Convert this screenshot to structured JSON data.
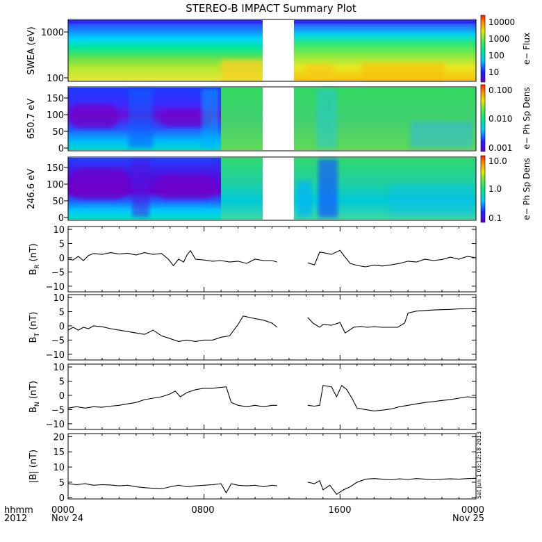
{
  "title": "STEREO-B IMPACT Summary Plot",
  "timestamp_vertical": "Sat Jun 1 03:12:18 2013",
  "xaxis": {
    "corner_labels": [
      "hhmm",
      "2012"
    ],
    "ticks": [
      "0000",
      "0800",
      "1600",
      "0000"
    ],
    "dates": [
      "Nov 24",
      "Nov 25"
    ]
  },
  "chart_data": [
    {
      "type": "heatmap",
      "ylabel": "SWEA (eV)",
      "y_scale": "log",
      "yticks": [
        "1000",
        "100"
      ],
      "colorbar": {
        "label": "e−  Flux",
        "scale": "log",
        "ticks": [
          "10000",
          "1000",
          "100",
          "10"
        ]
      },
      "data_gap_hours": [
        12.5,
        14.3
      ]
    },
    {
      "type": "heatmap",
      "ylabel": "650.7 eV",
      "yticks": [
        "150",
        "100",
        "50",
        "0"
      ],
      "ylim": [
        0,
        180
      ],
      "colorbar": {
        "label": "e−  Ph Sp Dens",
        "scale": "log",
        "ticks": [
          "0.100",
          "0.010",
          "0.001"
        ]
      },
      "data_gap_hours": [
        12.5,
        14.3
      ]
    },
    {
      "type": "heatmap",
      "ylabel": "246.6 eV",
      "yticks": [
        "150",
        "100",
        "50",
        "0"
      ],
      "ylim": [
        0,
        180
      ],
      "colorbar": {
        "label": "e−  Ph Sp Dens",
        "scale": "log",
        "ticks": [
          "10.0",
          "1.0",
          "0.1"
        ]
      },
      "data_gap_hours": [
        12.5,
        14.3
      ]
    },
    {
      "type": "line",
      "ylabel": "B",
      "ylabel_sub": "R",
      "ylabel_unit": " (nT)",
      "ylim": [
        -12,
        11
      ],
      "yticks": [
        "10",
        "5",
        "0",
        "−5",
        "−10"
      ],
      "x": [
        0,
        0.3,
        0.6,
        0.9,
        1.2,
        1.5,
        2,
        2.5,
        3,
        3.5,
        4,
        4.5,
        5,
        5.5,
        5.9,
        6.2,
        6.5,
        6.8,
        7,
        7.2,
        7.5,
        8,
        8.5,
        9,
        9.5,
        10,
        10.5,
        11,
        11.5,
        12,
        12.3,
        14.1,
        14.5,
        14.8,
        15,
        15.5,
        16,
        16.3,
        16.6,
        17,
        17.5,
        18,
        18.5,
        19,
        19.5,
        20,
        20.5,
        21,
        21.5,
        22,
        22.5,
        23,
        23.5,
        24
      ],
      "y": [
        -0.5,
        -0.8,
        0.5,
        -1,
        0.8,
        1.5,
        1.2,
        1.8,
        1.3,
        1.6,
        1,
        1.8,
        1.2,
        1.5,
        -0.5,
        -2.8,
        -0.5,
        -1.5,
        1,
        2.5,
        -0.5,
        -0.8,
        -1.2,
        -1,
        -1.5,
        -1.2,
        -2,
        -0.5,
        -1,
        -1,
        -1.5,
        -1.8,
        -2.5,
        2,
        1.8,
        1.2,
        2.6,
        0.2,
        -2,
        -2.7,
        -3.2,
        -2.6,
        -2.9,
        -2.5,
        -2,
        -1.2,
        -1.5,
        -0.5,
        -1,
        -0.6,
        0.2,
        -0.5,
        0.5,
        0
      ]
    },
    {
      "type": "line",
      "ylabel": "B",
      "ylabel_sub": "T",
      "ylabel_unit": " (nT)",
      "ylim": [
        -12,
        11
      ],
      "yticks": [
        "10",
        "5",
        "0",
        "−5",
        "−10"
      ],
      "x": [
        0,
        0.3,
        0.6,
        0.9,
        1.2,
        1.5,
        2,
        2.5,
        3,
        3.5,
        4,
        4.5,
        5,
        5.5,
        6,
        6.5,
        7,
        7.5,
        8,
        8.5,
        9,
        9.5,
        10,
        10.3,
        10.8,
        11.5,
        12,
        12.3,
        14.1,
        14.4,
        14.8,
        15,
        15.5,
        16,
        16.3,
        16.8,
        17.2,
        17.6,
        18,
        18.5,
        19,
        19.4,
        19.8,
        20,
        20.5,
        21,
        21.5,
        22,
        22.5,
        23,
        23.5,
        24
      ],
      "y": [
        -1.5,
        -0.5,
        -1.5,
        -0.5,
        -1,
        0,
        -0.3,
        -1,
        -1.5,
        -2,
        -2.5,
        -3,
        -1.5,
        -3.5,
        -4.5,
        -5.5,
        -5,
        -5.5,
        -5,
        -5,
        -4,
        -3.5,
        0.5,
        3.5,
        2.8,
        2,
        1,
        -0.5,
        3,
        1,
        -0.5,
        0.5,
        0.2,
        1.2,
        -2.5,
        -0.5,
        -0.2,
        -0.5,
        -0.3,
        -0.5,
        -0.5,
        -0.5,
        1,
        4.5,
        5.2,
        5.4,
        5.6,
        5.7,
        5.8,
        6,
        6.1,
        6.2
      ]
    },
    {
      "type": "line",
      "ylabel": "B",
      "ylabel_sub": "N",
      "ylabel_unit": " (nT)",
      "ylim": [
        -12,
        11
      ],
      "yticks": [
        "10",
        "5",
        "0",
        "−5",
        "−10"
      ],
      "x": [
        0,
        0.5,
        1,
        1.5,
        2,
        2.5,
        3,
        3.5,
        4,
        4.5,
        5,
        5.5,
        6,
        6.3,
        6.6,
        7,
        7.5,
        8,
        8.5,
        9,
        9.3,
        9.6,
        10,
        10.5,
        11,
        11.5,
        12,
        12.3,
        14.1,
        14.5,
        14.8,
        15,
        15.5,
        15.8,
        16.1,
        16.4,
        16.7,
        17,
        17.5,
        18,
        18.5,
        19,
        19.5,
        20,
        20.5,
        21,
        21.5,
        22,
        22.5,
        23,
        23.5,
        24
      ],
      "y": [
        -4.5,
        -4,
        -4.5,
        -4,
        -4.2,
        -3.8,
        -3.5,
        -3,
        -2.5,
        -1.5,
        -1,
        -0.5,
        0.5,
        1.5,
        -0.5,
        1,
        2,
        2.5,
        2.5,
        2.8,
        3,
        -2.5,
        -3.5,
        -4,
        -3.5,
        -4,
        -3.5,
        -3.5,
        -3.5,
        -3.8,
        -3.5,
        3.5,
        3,
        -0.5,
        3.5,
        2,
        -1,
        -4.5,
        -5,
        -5.5,
        -5.2,
        -4.8,
        -4,
        -3.5,
        -3,
        -2.5,
        -2.2,
        -1.8,
        -1.5,
        -1,
        -0.5,
        -0.8
      ]
    },
    {
      "type": "line",
      "ylabel": "|B|",
      "ylabel_sub": "",
      "ylabel_unit": " (nT)",
      "ylim": [
        -0.5,
        21
      ],
      "yticks": [
        "20",
        "15",
        "10",
        "5",
        "0"
      ],
      "x": [
        0,
        0.5,
        1,
        1.5,
        2,
        2.5,
        3,
        3.5,
        4,
        4.5,
        5,
        5.5,
        6,
        6.5,
        7,
        7.5,
        8,
        8.5,
        9,
        9.3,
        9.6,
        10,
        10.5,
        11,
        11.5,
        12,
        12.3,
        14.1,
        14.5,
        14.8,
        15,
        15.4,
        15.8,
        16.2,
        16.6,
        17,
        17.5,
        18,
        18.5,
        19,
        19.5,
        20,
        20.5,
        21,
        21.5,
        22,
        22.5,
        23,
        23.5,
        24
      ],
      "y": [
        4.5,
        4.2,
        4.5,
        4,
        4.2,
        4.1,
        3.8,
        4,
        3.5,
        3.2,
        3,
        2.8,
        3.5,
        4,
        3.5,
        3.8,
        4,
        4.2,
        4.5,
        1.5,
        4.5,
        4,
        3.8,
        4,
        3.5,
        4,
        3.8,
        5,
        4.5,
        5.5,
        2.5,
        4,
        1,
        2.5,
        3.5,
        5,
        6,
        6.2,
        6,
        5.8,
        6.1,
        5.9,
        6.2,
        6,
        5.8,
        6,
        6.1,
        6,
        6.2,
        6.3
      ]
    }
  ]
}
